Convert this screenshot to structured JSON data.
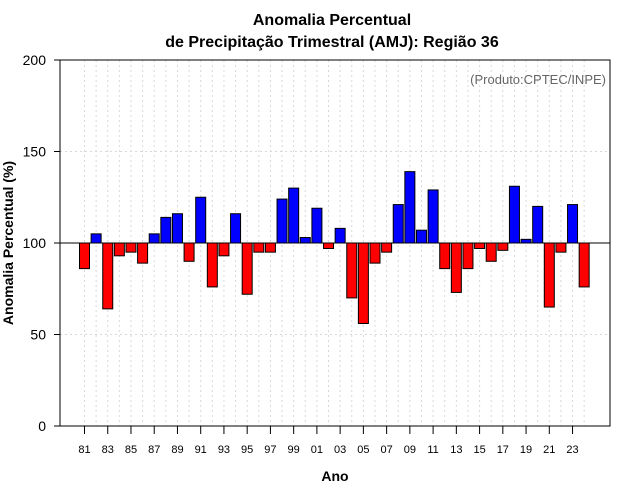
{
  "chart_data": {
    "type": "bar",
    "title_line1": "Anomalia Percentual",
    "title_line2": "de Precipitação Trimestral (AMJ): Região 36",
    "xlabel": "Ano",
    "ylabel": "Anomalia Percentual (%)",
    "credit": "(Produto:CPTEC/INPE)",
    "ylim": [
      0,
      200
    ],
    "yticks": [
      0,
      50,
      100,
      150,
      200
    ],
    "baseline": 100,
    "grid": true,
    "colors": {
      "above": "#0000ff",
      "below": "#ff0000"
    },
    "categories": [
      "81",
      "82",
      "83",
      "84",
      "85",
      "86",
      "87",
      "88",
      "89",
      "90",
      "91",
      "92",
      "93",
      "94",
      "95",
      "96",
      "97",
      "98",
      "99",
      "00",
      "01",
      "02",
      "03",
      "04",
      "05",
      "06",
      "07",
      "08",
      "09",
      "10",
      "11",
      "12",
      "13",
      "14",
      "15",
      "16",
      "17",
      "18",
      "19",
      "20",
      "21",
      "22",
      "23",
      "24"
    ],
    "xtick_labels": [
      "81",
      "83",
      "85",
      "87",
      "89",
      "91",
      "93",
      "95",
      "97",
      "99",
      "01",
      "03",
      "05",
      "07",
      "09",
      "11",
      "13",
      "15",
      "17",
      "19",
      "21",
      "23"
    ],
    "values": [
      86,
      105,
      64,
      93,
      95,
      89,
      105,
      114,
      116,
      90,
      125,
      76,
      93,
      116,
      72,
      95,
      95,
      124,
      130,
      103,
      119,
      97,
      108,
      70,
      56,
      89,
      95,
      121,
      139,
      107,
      129,
      86,
      73,
      86,
      97,
      90,
      96,
      131,
      102,
      120,
      65,
      95,
      121,
      76
    ]
  }
}
